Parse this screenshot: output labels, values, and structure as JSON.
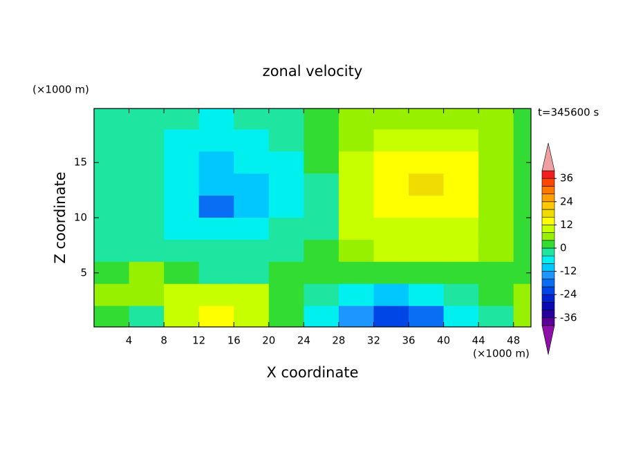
{
  "chart_data": {
    "type": "contour",
    "title": "zonal velocity",
    "xlabel": "X coordinate",
    "ylabel": "Z coordinate",
    "xunit": "(×1000 m)",
    "yunit": "(×1000 m)",
    "annotation": "t=345600 s",
    "xlim": [
      0,
      50
    ],
    "ylim": [
      0.1,
      19.9
    ],
    "xticks": [
      4,
      8,
      12,
      16,
      20,
      24,
      28,
      32,
      36,
      40,
      44,
      48
    ],
    "yticks": [
      5,
      10,
      15
    ],
    "x": [
      2,
      6,
      10,
      14,
      18,
      22,
      26,
      30,
      34,
      38,
      42,
      46,
      50
    ],
    "y": [
      19,
      17,
      15,
      13,
      11,
      9,
      7,
      5,
      3,
      1
    ],
    "z": [
      [
        -2,
        -2,
        -4,
        -6,
        -4,
        -2,
        2,
        6,
        6,
        6,
        6,
        4,
        2
      ],
      [
        -2,
        -4,
        -6,
        -8,
        -6,
        -4,
        2,
        6,
        10,
        10,
        8,
        6,
        2
      ],
      [
        -2,
        -4,
        -8,
        -10,
        -8,
        -6,
        0,
        8,
        12,
        14,
        12,
        6,
        2
      ],
      [
        -2,
        -4,
        -8,
        -12,
        -10,
        -6,
        -2,
        10,
        14,
        18,
        12,
        6,
        2
      ],
      [
        -2,
        -4,
        -8,
        -18,
        -10,
        -6,
        -2,
        10,
        14,
        14,
        12,
        6,
        2
      ],
      [
        -2,
        -4,
        -6,
        -8,
        -6,
        -4,
        -2,
        8,
        10,
        10,
        10,
        6,
        2
      ],
      [
        -2,
        -2,
        -4,
        -4,
        -4,
        -4,
        2,
        6,
        8,
        8,
        8,
        6,
        0
      ],
      [
        2,
        6,
        2,
        -2,
        -2,
        0,
        2,
        2,
        2,
        2,
        2,
        0,
        2
      ],
      [
        6,
        6,
        8,
        10,
        8,
        0,
        -4,
        -8,
        -10,
        -8,
        -4,
        2,
        6
      ],
      [
        2,
        -2,
        10,
        14,
        8,
        2,
        -6,
        -14,
        -22,
        -18,
        -8,
        -2,
        4
      ]
    ],
    "levels": [
      -40,
      -36,
      -32,
      -28,
      -24,
      -20,
      -16,
      -12,
      -8,
      -4,
      0,
      4,
      8,
      12,
      16,
      20,
      24,
      28,
      32,
      36,
      40
    ],
    "colors": [
      "#8c0fa8",
      "#5a0096",
      "#2800a0",
      "#0a0ab4",
      "#0023d2",
      "#0046e6",
      "#0a6ef5",
      "#1e96ff",
      "#00c8ff",
      "#00f0f0",
      "#1ee6a0",
      "#32dc32",
      "#96f000",
      "#c8ff00",
      "#ffff00",
      "#f0dc00",
      "#ffc800",
      "#ffa000",
      "#ff7800",
      "#ff4600",
      "#f01e1e",
      "#f0a0a0"
    ],
    "cbar_ticks": [
      -36,
      -24,
      -12,
      0,
      12,
      24,
      36
    ]
  }
}
